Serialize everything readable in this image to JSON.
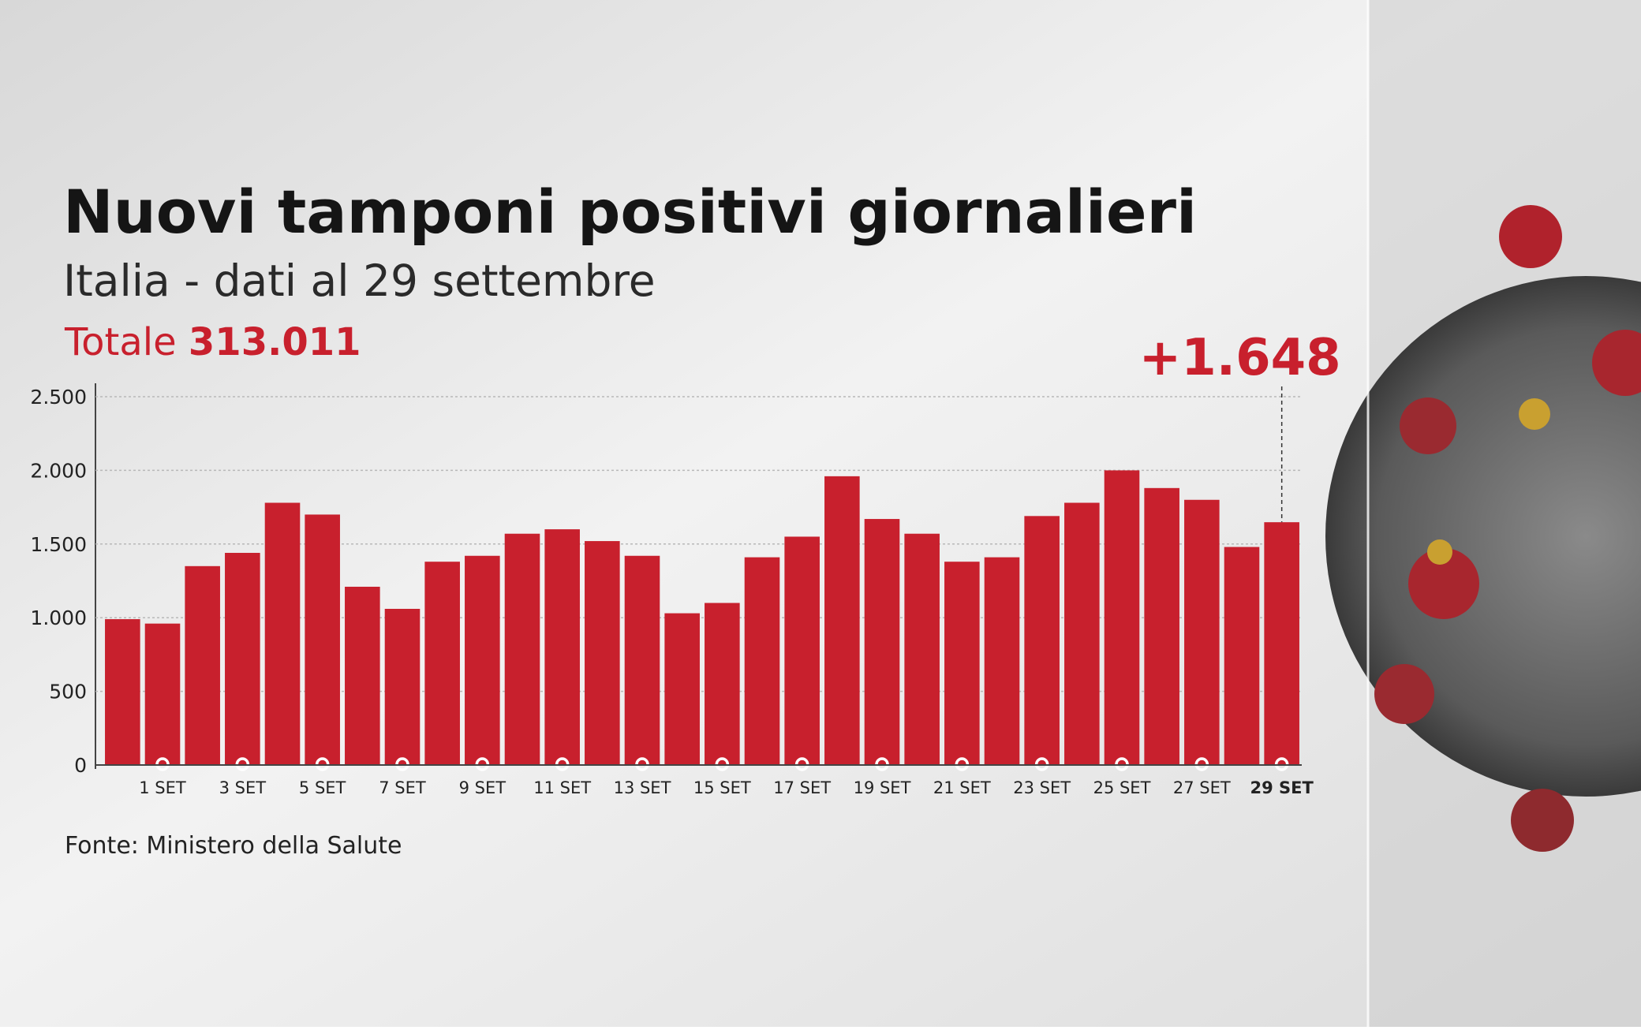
{
  "chart_data": {
    "type": "bar",
    "title": "Nuovi tamponi positivi giornalieri",
    "subtitle": "Italia - dati al 29 settembre",
    "total_label": "Totale",
    "total_value": "313.011",
    "source": "Fonte: Ministero della Salute",
    "categories": [
      null,
      "1 SET",
      null,
      "3 SET",
      null,
      "5 SET",
      null,
      "7 SET",
      null,
      "9 SET",
      null,
      "11 SET",
      null,
      "13 SET",
      null,
      "15 SET",
      null,
      "17 SET",
      null,
      "19 SET",
      null,
      "21 SET",
      null,
      "23 SET",
      null,
      "25 SET",
      null,
      "27 SET",
      null,
      "29 SET"
    ],
    "values": [
      990,
      960,
      1350,
      1440,
      1780,
      1700,
      1210,
      1060,
      1380,
      1420,
      1570,
      1600,
      1520,
      1420,
      1030,
      1100,
      1410,
      1550,
      1960,
      1670,
      1570,
      1380,
      1410,
      1690,
      1780,
      2000,
      1880,
      1800,
      1480,
      1648
    ],
    "value_labels": [
      null,
      null,
      null,
      null,
      null,
      null,
      null,
      null,
      null,
      null,
      null,
      null,
      null,
      null,
      null,
      null,
      null,
      null,
      null,
      null,
      null,
      null,
      null,
      null,
      null,
      null,
      null,
      null,
      null,
      "+1.648"
    ],
    "color": "#c8202d",
    "ylim": [
      0,
      2500
    ],
    "yticks": [
      0,
      500,
      {
        "value": 1000,
        "label": "1.000"
      },
      {
        "value": 1500,
        "label": "1.500"
      },
      {
        "value": 2000,
        "label": "2.000"
      },
      {
        "value": 2500,
        "label": "2.500"
      }
    ],
    "grid": true
  }
}
